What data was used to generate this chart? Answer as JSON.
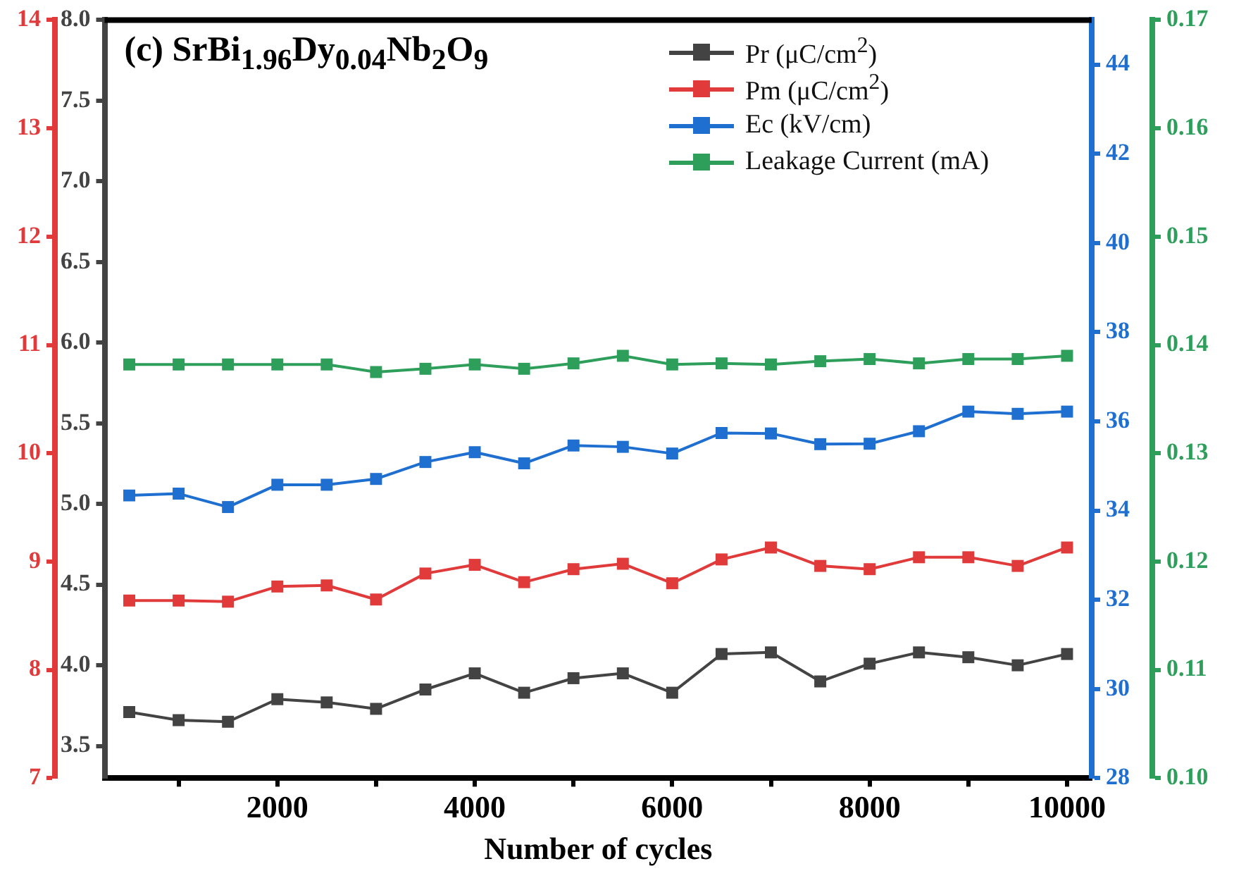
{
  "chart_data": [
    {
      "type": "line",
      "title": "(c) SrBi$_{1.96}$Dy$_{0.04}$Nb$_{2}$O$_{9}$",
      "xlabel": "Number of cycles",
      "x": [
        500,
        1000,
        1500,
        2000,
        2500,
        3000,
        3500,
        4000,
        4500,
        5000,
        5500,
        6000,
        6500,
        7000,
        7500,
        8000,
        8500,
        9000,
        9500,
        10000
      ],
      "xlim": [
        250,
        10250
      ],
      "xticks": [
        {
          "value": 1000,
          "label": null
        },
        2000,
        {
          "value": 3000,
          "label": null
        },
        4000,
        {
          "value": 5000,
          "label": null
        },
        6000,
        {
          "value": 7000,
          "label": null
        },
        8000,
        {
          "value": 9000,
          "label": null
        },
        10000
      ],
      "ylim": [
        3.3,
        8.0
      ],
      "yticks": [
        {
          "value": 3.5,
          "label": "3.5"
        },
        {
          "value": 4,
          "label": "4.0"
        },
        {
          "value": 4.5,
          "label": "4.5"
        },
        {
          "value": 5,
          "label": "5.0"
        },
        {
          "value": 5.5,
          "label": "5.5"
        },
        {
          "value": 6,
          "label": "6.0"
        },
        {
          "value": 6.5,
          "label": "6.5"
        },
        {
          "value": 7,
          "label": "7.0"
        },
        {
          "value": 7.5,
          "label": "7.5"
        },
        {
          "value": 8,
          "label": "8.0"
        }
      ],
      "y2lim": [
        7,
        14
      ],
      "y2ticks": [
        7,
        8,
        9,
        10,
        11,
        12,
        13,
        14
      ],
      "y3lim": [
        28,
        45
      ],
      "y3ticks": [
        28,
        30,
        32,
        34,
        36,
        38,
        40,
        42,
        44
      ],
      "series": [
        {
          "name": "Pr (μC/cm$^{2}$)",
          "color": "#434343",
          "axis": "y",
          "values": [
            3.71,
            3.66,
            3.65,
            3.79,
            3.77,
            3.73,
            3.85,
            3.95,
            3.83,
            3.92,
            3.95,
            3.83,
            4.07,
            4.08,
            3.9,
            4.01,
            4.08,
            4.05,
            4.0,
            4.07
          ]
        },
        {
          "name": "Pm (μC/cm$^{2}$)",
          "color": "#e03a3a",
          "axis": "y2",
          "values": [
            8.64,
            8.64,
            8.63,
            8.77,
            8.78,
            8.65,
            8.89,
            8.97,
            8.81,
            8.93,
            8.98,
            8.8,
            9.02,
            9.13,
            8.96,
            8.93,
            9.04,
            9.04,
            8.96,
            9.13
          ]
        },
        {
          "name": "Ec (kV/cm)",
          "color": "#1e6fd0",
          "axis": "y3",
          "values": [
            34.34,
            34.38,
            34.08,
            34.58,
            34.58,
            34.71,
            35.09,
            35.31,
            35.06,
            35.46,
            35.43,
            35.28,
            35.74,
            35.73,
            35.49,
            35.5,
            35.78,
            36.22,
            36.17,
            36.22
          ]
        }
      ],
      "marker": "square",
      "line_style": "solid",
      "legend": "top right"
    },
    {
      "type": "line",
      "x": [
        500,
        1000,
        1500,
        2000,
        2500,
        3000,
        3500,
        4000,
        4500,
        5000,
        5500,
        6000,
        6500,
        7000,
        7500,
        8000,
        8500,
        9000,
        9500,
        10000
      ],
      "xlim": [
        250,
        10250
      ],
      "tick_labels": "y",
      "ylim": [
        0.1,
        0.17
      ],
      "yticks": [
        {
          "value": 0.1,
          "label": "0.10"
        },
        0.11,
        0.12,
        0.13,
        0.14,
        0.15,
        0.16,
        0.17
      ],
      "series": [
        {
          "name": "Leakage Current (mA)",
          "color": "#2e9e5b",
          "values": [
            0.1382,
            0.1382,
            0.1382,
            0.1382,
            0.1382,
            0.1375,
            0.1378,
            0.1382,
            0.1378,
            0.1383,
            0.139,
            0.1382,
            0.1383,
            0.1382,
            0.1385,
            0.1387,
            0.1383,
            0.1387,
            0.1387,
            0.139
          ]
        }
      ],
      "marker": "square",
      "line_style": "solid",
      "legend": "top right"
    }
  ]
}
